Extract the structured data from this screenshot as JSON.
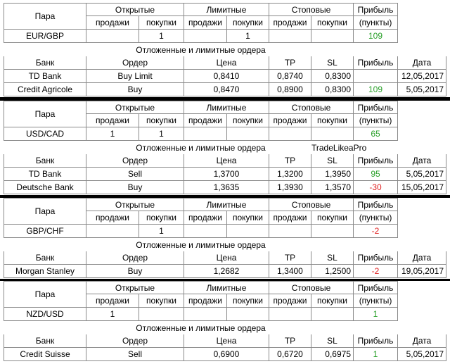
{
  "headers": {
    "pair": "Пара",
    "open": "Открытые",
    "limit": "Лимитные",
    "stop": "Стоповые",
    "profit": "Прибыль",
    "sell": "продажи",
    "buy": "покупки",
    "points": "(пункты)",
    "pending": "Отложенные и лимитные ордера",
    "bank": "Банк",
    "order": "Ордер",
    "price": "Цена",
    "tp": "TP",
    "sl": "SL",
    "date": "Дата"
  },
  "watermark": "TradeLikeaPro",
  "blocks": [
    {
      "position": {
        "pair": "EUR/GBP",
        "open_buy": "1",
        "limit_buy": "1",
        "profit": "109"
      },
      "orders": [
        {
          "bank": "TD Bank",
          "order": "Buy Limit",
          "price": "0,8410",
          "tp": "0,8740",
          "sl": "0,8300",
          "date": "12,05,2017"
        },
        {
          "bank": "Credit Agricole",
          "order": "Buy",
          "price": "0,8470",
          "tp": "0,8900",
          "sl": "0,8300",
          "profit": "109",
          "date": "5,05,2017"
        }
      ]
    },
    {
      "position": {
        "pair": "USD/CAD",
        "open_sell": "1",
        "open_buy": "1",
        "profit": "65"
      },
      "orders": [
        {
          "bank": "TD Bank",
          "order": "Sell",
          "price": "1,3700",
          "tp": "1,3200",
          "sl": "1,3950",
          "profit": "95",
          "date": "5,05,2017"
        },
        {
          "bank": "Deutsche Bank",
          "order": "Buy",
          "price": "1,3635",
          "tp": "1,3930",
          "sl": "1,3570",
          "profit": "-30",
          "date": "15,05,2017"
        }
      ]
    },
    {
      "position": {
        "pair": "GBP/CHF",
        "open_buy": "1",
        "profit": "-2"
      },
      "orders": [
        {
          "bank": "Morgan Stanley",
          "order": "Buy",
          "price": "1,2682",
          "tp": "1,3400",
          "sl": "1,2500",
          "profit": "-2",
          "date": "19,05,2017"
        }
      ]
    },
    {
      "position": {
        "pair": "NZD/USD",
        "open_sell": "1",
        "profit": "1"
      },
      "orders": [
        {
          "bank": "Credit Suisse",
          "order": "Sell",
          "price": "0,6900",
          "tp": "0,6720",
          "sl": "0,6975",
          "profit": "1",
          "date": "5,05,2017"
        }
      ]
    }
  ]
}
